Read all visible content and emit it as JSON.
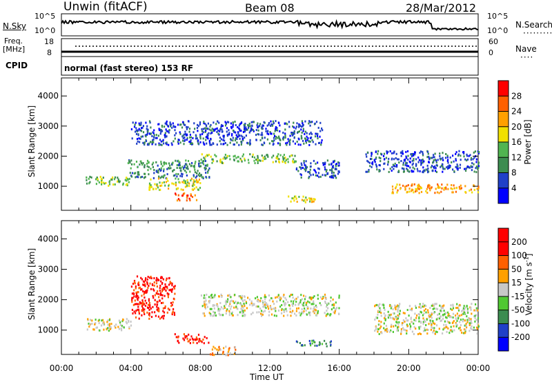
{
  "header": {
    "station": "Unwin (fitACF)",
    "beam": "Beam 08",
    "date": "28/Mar/2012"
  },
  "panels": {
    "nsky": {
      "label": "N.Sky",
      "ticks_left": [
        "10^5",
        "10^0"
      ],
      "right_label": "N.Search",
      "ticks_right": [
        "10^5",
        "10^0"
      ]
    },
    "freq": {
      "label_line1": "Freq.",
      "label_line2": "[MHz]",
      "ticks_left": [
        "18",
        "8"
      ],
      "right_label": "Nave",
      "ticks_right": [
        "60",
        "0"
      ]
    },
    "cpid": {
      "label": "CPID",
      "text": "normal (fast stereo) 153 RF"
    }
  },
  "chart_data": [
    {
      "type": "heatmap",
      "title": "",
      "parameter": "Power",
      "ylabel": "Slant Range [km]",
      "ylim": [
        200,
        4600
      ],
      "yticks": [
        "1000",
        "2000",
        "3000",
        "4000"
      ],
      "xlim_hours": [
        0,
        24
      ],
      "colorbar": {
        "label": "Power [dB]",
        "ticks": [
          "4",
          "8",
          "12",
          "16",
          "20",
          "24",
          "28"
        ],
        "colors": [
          "#0000ff",
          "#2040c8",
          "#3c8c50",
          "#50b450",
          "#f0e000",
          "#ffa000",
          "#ff6000",
          "#ff0000"
        ]
      },
      "regions": [
        {
          "t0": 1.4,
          "t1": 4.0,
          "r0": 1050,
          "r1": 1350,
          "level": 3
        },
        {
          "t0": 3.8,
          "t1": 8.5,
          "r0": 1300,
          "r1": 1900,
          "level": 2
        },
        {
          "t0": 5.0,
          "t1": 8.0,
          "r0": 900,
          "r1": 1300,
          "level": 4
        },
        {
          "t0": 6.5,
          "t1": 7.8,
          "r0": 550,
          "r1": 800,
          "level": 6
        },
        {
          "t0": 8.0,
          "t1": 13.5,
          "r0": 1800,
          "r1": 2100,
          "level": 3
        },
        {
          "t0": 13.5,
          "t1": 16.0,
          "r0": 1300,
          "r1": 1900,
          "level": 1
        },
        {
          "t0": 4.0,
          "t1": 15.0,
          "r0": 2400,
          "r1": 3200,
          "level": 1
        },
        {
          "t0": 13.0,
          "t1": 15.0,
          "r0": 500,
          "r1": 700,
          "level": 4
        },
        {
          "t0": 17.5,
          "t1": 24.0,
          "r0": 1500,
          "r1": 2200,
          "level": 1
        },
        {
          "t0": 19.0,
          "t1": 24.0,
          "r0": 800,
          "r1": 1100,
          "level": 5
        }
      ]
    },
    {
      "type": "heatmap",
      "title": "",
      "parameter": "Velocity",
      "ylabel": "Slant Range [km]",
      "ylim": [
        200,
        4600
      ],
      "yticks": [
        "1000",
        "2000",
        "3000",
        "4000"
      ],
      "xlabel": "Time UT",
      "xticks": [
        "00:00",
        "04:00",
        "08:00",
        "12:00",
        "16:00",
        "20:00",
        "00:00"
      ],
      "xlim_hours": [
        0,
        24
      ],
      "colorbar": {
        "label_main": "Velocity [m s",
        "label_sup": "-1",
        "label_end": "]",
        "ticks": [
          "200",
          "100",
          "50",
          "15",
          "-15",
          "-50",
          "-100",
          "-200"
        ],
        "colors": [
          "#0000ff",
          "#2040c8",
          "#3c8c50",
          "#50c832",
          "#c8c8c8",
          "#ffa000",
          "#ff6000",
          "#ff0000",
          "#ff0000"
        ]
      },
      "regions": [
        {
          "t0": 1.4,
          "t1": 4.0,
          "r0": 1000,
          "r1": 1400,
          "level": 4
        },
        {
          "t0": 4.0,
          "t1": 6.5,
          "r0": 1400,
          "r1": 2800,
          "level": 7
        },
        {
          "t0": 6.5,
          "t1": 8.5,
          "r0": 600,
          "r1": 900,
          "level": 7
        },
        {
          "t0": 8.0,
          "t1": 16.0,
          "r0": 1500,
          "r1": 2200,
          "level": 4
        },
        {
          "t0": 13.5,
          "t1": 15.5,
          "r0": 500,
          "r1": 700,
          "level": 2
        },
        {
          "t0": 18.0,
          "t1": 24.0,
          "r0": 900,
          "r1": 1900,
          "level": 4
        },
        {
          "t0": 8.5,
          "t1": 10.0,
          "r0": 200,
          "r1": 500,
          "level": 5
        }
      ]
    }
  ]
}
